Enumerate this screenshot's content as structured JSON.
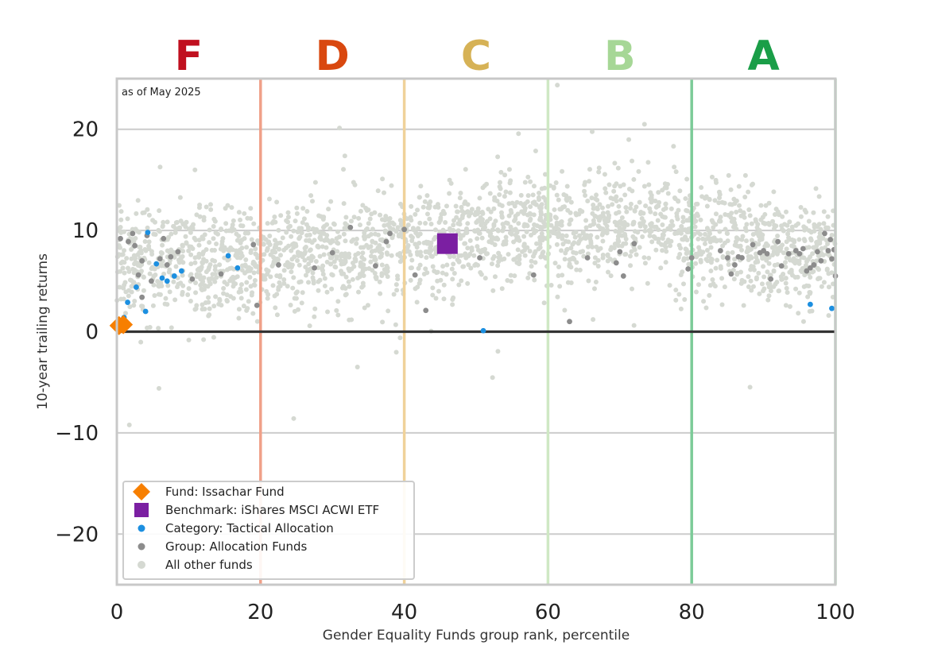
{
  "chart_data": {
    "type": "scatter",
    "note": "as of May 2025",
    "xlabel": "Gender Equality Funds group rank, percentile",
    "ylabel": "10-year trailing returns",
    "xlim": [
      0,
      100
    ],
    "ylim": [
      -25,
      25
    ],
    "x_ticks": [
      0,
      20,
      40,
      60,
      80,
      100
    ],
    "x_tick_labels": [
      "0",
      "20",
      "40",
      "60",
      "80",
      "100"
    ],
    "y_ticks": [
      20,
      10,
      0,
      -10,
      -20
    ],
    "y_tick_labels": [
      "20",
      "10",
      "0",
      "−10",
      "−20"
    ],
    "grid": "horizontal",
    "legend_position": "lower-left",
    "zero_line": 0,
    "grade_bands": [
      {
        "grade": "F",
        "from": 0,
        "to": 20,
        "color": "#c0101f",
        "line_color": "#f0a088"
      },
      {
        "grade": "D",
        "from": 20,
        "to": 40,
        "color": "#d9480f",
        "line_color": "#f0d29a"
      },
      {
        "grade": "C",
        "from": 40,
        "to": 60,
        "color": "#d6b256",
        "line_color": "#cfe8c4"
      },
      {
        "grade": "B",
        "from": 60,
        "to": 80,
        "color": "#a6d796",
        "line_color": "#7ccb98"
      },
      {
        "grade": "A",
        "from": 80,
        "to": 100,
        "color": "#1a9e48",
        "line_color": "#a8d8b4"
      }
    ],
    "series": [
      {
        "name": "Fund: Issachar Fund",
        "marker": "diamond",
        "color": "#f77f00",
        "points": [
          [
            0.3,
            0.6
          ],
          [
            0.9,
            0.7
          ]
        ]
      },
      {
        "name": "Benchmark: iShares MSCI ACWI ETF",
        "marker": "square",
        "color": "#7b1fa2",
        "points": [
          [
            46,
            8.7
          ]
        ]
      },
      {
        "name": "Category: Tactical Allocation",
        "marker": "dot",
        "color": "#1c8fe0",
        "points": [
          [
            1.0,
            1.4
          ],
          [
            1.5,
            2.9
          ],
          [
            2.7,
            4.4
          ],
          [
            4.0,
            2.0
          ],
          [
            4.3,
            9.8
          ],
          [
            5.5,
            6.7
          ],
          [
            6.3,
            5.3
          ],
          [
            7.0,
            5.0
          ],
          [
            8.0,
            5.5
          ],
          [
            9.0,
            6.0
          ],
          [
            15.5,
            7.5
          ],
          [
            16.8,
            6.3
          ],
          [
            51,
            0.1
          ],
          [
            96.5,
            2.7
          ],
          [
            99.5,
            2.3
          ]
        ]
      },
      {
        "name": "Group: Allocation Funds",
        "marker": "dot",
        "color": "#8c8c8c",
        "points": [
          [
            0.5,
            9.2
          ],
          [
            1.6,
            8.9
          ],
          [
            2.5,
            8.5
          ],
          [
            2.2,
            9.7
          ],
          [
            3.0,
            5.6
          ],
          [
            3.5,
            7.0
          ],
          [
            4.2,
            9.5
          ],
          [
            4.8,
            5.0
          ],
          [
            6.0,
            7.2
          ],
          [
            6.5,
            9.2
          ],
          [
            7.0,
            6.6
          ],
          [
            7.5,
            7.4
          ],
          [
            8.5,
            7.9
          ],
          [
            10.5,
            5.2
          ],
          [
            14.5,
            5.7
          ],
          [
            19.0,
            8.6
          ],
          [
            19.5,
            2.6
          ],
          [
            3.5,
            3.4
          ],
          [
            22.5,
            6.6
          ],
          [
            27.5,
            6.3
          ],
          [
            30.0,
            7.8
          ],
          [
            32.5,
            10.3
          ],
          [
            36.0,
            6.5
          ],
          [
            37.5,
            8.9
          ],
          [
            38.0,
            9.7
          ],
          [
            40.0,
            10.1
          ],
          [
            41.5,
            5.6
          ],
          [
            43.0,
            2.1
          ],
          [
            50.5,
            7.3
          ],
          [
            58.0,
            5.6
          ],
          [
            63.0,
            1.0
          ],
          [
            65.5,
            7.3
          ],
          [
            69.5,
            6.8
          ],
          [
            70.0,
            7.9
          ],
          [
            70.5,
            5.5
          ],
          [
            72.0,
            8.7
          ],
          [
            80.0,
            7.3
          ],
          [
            79.5,
            6.2
          ],
          [
            84.0,
            8.0
          ],
          [
            85.0,
            7.3
          ],
          [
            85.5,
            5.7
          ],
          [
            86.5,
            7.4
          ],
          [
            86.0,
            6.6
          ],
          [
            87.0,
            7.3
          ],
          [
            88.5,
            8.6
          ],
          [
            89.5,
            7.8
          ],
          [
            90.0,
            8.0
          ],
          [
            90.5,
            7.7
          ],
          [
            91.0,
            5.2
          ],
          [
            92.0,
            8.9
          ],
          [
            92.5,
            6.5
          ],
          [
            93.5,
            7.7
          ],
          [
            94.5,
            8.0
          ],
          [
            95.0,
            7.7
          ],
          [
            95.5,
            8.2
          ],
          [
            96.0,
            6.0
          ],
          [
            96.5,
            6.3
          ],
          [
            97.0,
            6.6
          ],
          [
            97.5,
            7.9
          ],
          [
            98.0,
            7.0
          ],
          [
            98.5,
            9.7
          ],
          [
            99.0,
            8.0
          ],
          [
            99.3,
            9.1
          ],
          [
            99.5,
            7.2
          ],
          [
            99.8,
            8.1
          ],
          [
            100,
            5.5
          ]
        ]
      },
      {
        "name": "All other funds",
        "marker": "dot",
        "color": "#d5d9d2",
        "cloud": {
          "count": 2400,
          "x_range": [
            0,
            100
          ],
          "anchors": [
            [
              0,
              7.0
            ],
            [
              10,
              7.0
            ],
            [
              20,
              7.2
            ],
            [
              30,
              7.8
            ],
            [
              40,
              8.5
            ],
            [
              50,
              9.5
            ],
            [
              60,
              10.2
            ],
            [
              70,
              10.6
            ],
            [
              80,
              9.5
            ],
            [
              90,
              8.0
            ],
            [
              100,
              7.6
            ]
          ],
          "spread": 2.6,
          "outlier_share": 0.03,
          "outlier_spread": 7.5
        }
      }
    ]
  }
}
